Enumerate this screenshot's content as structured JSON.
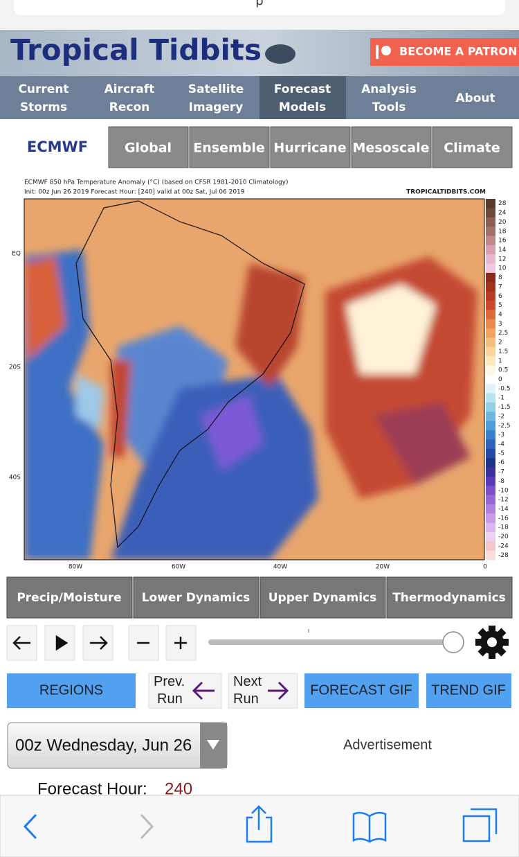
{
  "browser": {
    "url": "p"
  },
  "header": {
    "logo": "Tropical Tidbits",
    "patron_button": "BECOME A PATRON"
  },
  "nav": [
    "Current Storms",
    "Aircraft Recon",
    "Satellite Imagery",
    "Forecast Models",
    "Analysis Tools",
    "About"
  ],
  "model_tabs": {
    "active": "ECMWF",
    "tabs": [
      "Global",
      "Ensemble",
      "Hurricane",
      "Mesoscale",
      "Climate"
    ]
  },
  "map": {
    "title": "ECMWF 850 hPa Temperature Anomaly (°C) (based on CFSR 1981-2010 Climatology)",
    "subtitle": "Init: 00z Jun 26 2019   Forecast Hour: [240]   valid at 00z Sat, Jul 06 2019",
    "credit": "TROPICALTIDBITS.COM",
    "lat_labels": [
      "EQ",
      "20S",
      "40S"
    ],
    "lon_labels": [
      "80W",
      "60W",
      "40W",
      "20W",
      "0"
    ],
    "colorbar_labels": [
      "28",
      "24",
      "20",
      "18",
      "16",
      "14",
      "12",
      "10",
      "8",
      "7",
      "6",
      "5",
      "4",
      "3",
      "2.5",
      "2",
      "1.5",
      "1",
      "0.5",
      "0",
      "-0.5",
      "-1",
      "-1.5",
      "-2",
      "-2.5",
      "-3",
      "-4",
      "-5",
      "-6",
      "-7",
      "-8",
      "-10",
      "-12",
      "-14",
      "-16",
      "-18",
      "-20",
      "-24",
      "-28"
    ]
  },
  "category_tabs": [
    "Precip/Moisture",
    "Lower Dynamics",
    "Upper Dynamics",
    "Thermodynamics"
  ],
  "controls": {
    "regions": "REGIONS",
    "prev_run": "Prev. Run",
    "next_run": "Next Run",
    "forecast_gif": "FORECAST GIF",
    "trend_gif": "TREND GIF"
  },
  "run_select": "00z Wednesday, Jun 26",
  "advertisement": "Advertisement",
  "forecast_hour": {
    "label": "Forecast Hour:",
    "value": "240"
  }
}
